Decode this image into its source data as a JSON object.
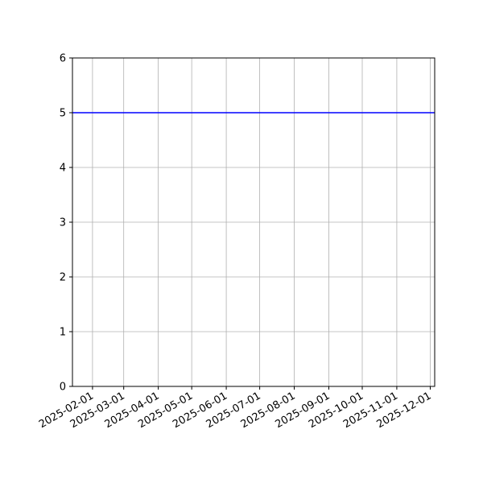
{
  "chart_data": {
    "type": "line",
    "title": "",
    "xlabel": "",
    "ylabel": "",
    "xlim": [
      "2025-01-14",
      "2025-12-05"
    ],
    "ylim": [
      0,
      6
    ],
    "grid": true,
    "x_ticks": [
      "2025-02-01",
      "2025-03-01",
      "2025-04-01",
      "2025-05-01",
      "2025-06-01",
      "2025-07-01",
      "2025-08-01",
      "2025-09-01",
      "2025-10-01",
      "2025-11-01",
      "2025-12-01"
    ],
    "y_ticks": [
      "0",
      "1",
      "2",
      "3",
      "4",
      "5",
      "6"
    ],
    "series": [
      {
        "color": "#0000ff",
        "style": "horizontal line",
        "y": 5,
        "x": [
          "2025-01-14",
          "2025-12-05"
        ]
      }
    ]
  }
}
